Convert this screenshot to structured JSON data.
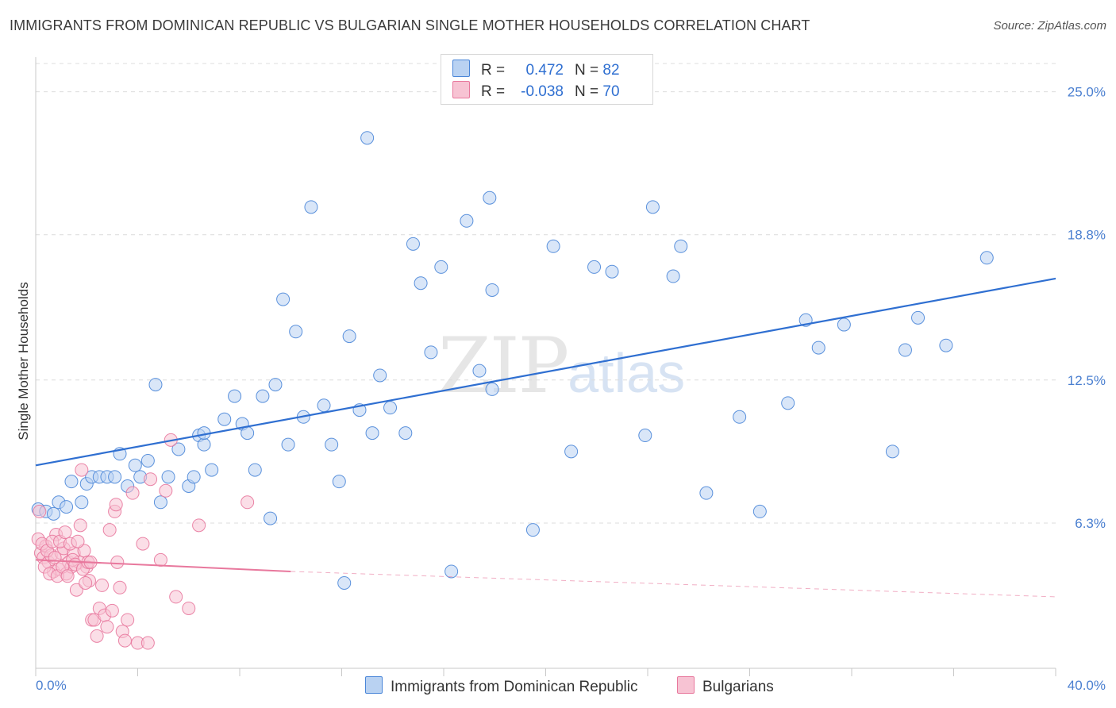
{
  "header": {
    "title": "IMMIGRANTS FROM DOMINICAN REPUBLIC VS BULGARIAN SINGLE MOTHER HOUSEHOLDS CORRELATION CHART",
    "source": "Source: ZipAtlas.com"
  },
  "watermark": {
    "zip": "ZIP",
    "atlas": "atlas"
  },
  "legend": {
    "rows": [
      {
        "r_label": "R =",
        "r_value": "0.472",
        "n_label": "N =",
        "n_value": "82",
        "color": "#a9c8f0"
      },
      {
        "r_label": "R =",
        "r_value": "-0.038",
        "n_label": "N =",
        "n_value": "70",
        "color": "#f5b8cb"
      }
    ]
  },
  "bottom_legend": {
    "items": [
      {
        "label": "Immigrants from Dominican Republic",
        "color": "#a9c8f0"
      },
      {
        "label": "Bulgarians",
        "color": "#f5b8cb"
      }
    ]
  },
  "chart_data": {
    "type": "scatter",
    "title": "IMMIGRANTS FROM DOMINICAN REPUBLIC VS BULGARIAN SINGLE MOTHER HOUSEHOLDS CORRELATION CHART",
    "ylabel": "Single Mother Households",
    "xlabel": "",
    "xlim": [
      0,
      40
    ],
    "ylim": [
      0,
      26.5
    ],
    "x_tick_labels": [
      "0.0%",
      "40.0%"
    ],
    "y_ticks": [
      6.3,
      12.5,
      18.8,
      25.0
    ],
    "y_tick_labels": [
      "6.3%",
      "12.5%",
      "18.8%",
      "25.0%"
    ],
    "grid": true,
    "colors": {
      "blue": "#4a86d8",
      "blue_fill": "#b9d2f2",
      "pink": "#e8789d",
      "pink_fill": "#f7c3d3",
      "trend_blue": "#2f6fd1",
      "trend_pink": "#e8789d"
    },
    "series": [
      {
        "name": "Immigrants from Dominican Republic",
        "trend": {
          "x": [
            0,
            40
          ],
          "y": [
            8.8,
            16.9
          ]
        },
        "points": [
          [
            0.1,
            6.9
          ],
          [
            0.4,
            6.8
          ],
          [
            0.7,
            6.7
          ],
          [
            0.9,
            7.2
          ],
          [
            1.2,
            7.0
          ],
          [
            1.4,
            8.1
          ],
          [
            1.8,
            7.2
          ],
          [
            2.0,
            8.0
          ],
          [
            2.2,
            8.3
          ],
          [
            2.5,
            8.3
          ],
          [
            2.8,
            8.3
          ],
          [
            3.1,
            8.3
          ],
          [
            3.3,
            9.3
          ],
          [
            3.6,
            7.9
          ],
          [
            3.9,
            8.8
          ],
          [
            4.1,
            8.3
          ],
          [
            4.4,
            9.0
          ],
          [
            4.7,
            12.3
          ],
          [
            4.9,
            7.2
          ],
          [
            5.2,
            8.3
          ],
          [
            5.6,
            9.5
          ],
          [
            6.0,
            7.9
          ],
          [
            6.2,
            8.3
          ],
          [
            6.4,
            10.1
          ],
          [
            6.6,
            9.7
          ],
          [
            6.9,
            8.6
          ],
          [
            7.4,
            10.8
          ],
          [
            7.8,
            11.8
          ],
          [
            8.1,
            10.6
          ],
          [
            8.3,
            10.2
          ],
          [
            8.6,
            8.6
          ],
          [
            8.9,
            11.8
          ],
          [
            9.2,
            6.5
          ],
          [
            9.4,
            12.3
          ],
          [
            9.7,
            16.0
          ],
          [
            9.9,
            9.7
          ],
          [
            10.2,
            14.6
          ],
          [
            10.5,
            10.9
          ],
          [
            10.8,
            20.0
          ],
          [
            11.3,
            11.4
          ],
          [
            11.6,
            9.7
          ],
          [
            11.9,
            8.1
          ],
          [
            12.1,
            3.7
          ],
          [
            12.3,
            14.4
          ],
          [
            12.7,
            11.2
          ],
          [
            13.0,
            23.0
          ],
          [
            13.2,
            10.2
          ],
          [
            13.5,
            12.7
          ],
          [
            13.9,
            11.3
          ],
          [
            14.5,
            10.2
          ],
          [
            14.8,
            18.4
          ],
          [
            15.1,
            16.7
          ],
          [
            15.5,
            13.7
          ],
          [
            15.9,
            17.4
          ],
          [
            16.3,
            4.2
          ],
          [
            16.9,
            19.4
          ],
          [
            17.4,
            12.9
          ],
          [
            17.9,
            12.1
          ],
          [
            17.8,
            20.4
          ],
          [
            17.9,
            16.4
          ],
          [
            19.5,
            6.0
          ],
          [
            20.3,
            18.3
          ],
          [
            21.0,
            9.4
          ],
          [
            21.9,
            17.4
          ],
          [
            22.6,
            17.2
          ],
          [
            23.9,
            10.1
          ],
          [
            24.2,
            20.0
          ],
          [
            25.0,
            17.0
          ],
          [
            25.3,
            18.3
          ],
          [
            26.3,
            7.6
          ],
          [
            27.6,
            10.9
          ],
          [
            28.4,
            6.8
          ],
          [
            29.5,
            11.5
          ],
          [
            30.2,
            15.1
          ],
          [
            30.7,
            13.9
          ],
          [
            31.7,
            14.9
          ],
          [
            33.6,
            9.4
          ],
          [
            34.1,
            13.8
          ],
          [
            34.6,
            15.2
          ],
          [
            35.7,
            14.0
          ],
          [
            37.3,
            17.8
          ],
          [
            6.6,
            10.2
          ]
        ]
      },
      {
        "name": "Bulgarians",
        "trend": {
          "x": [
            0,
            10
          ],
          "y": [
            4.7,
            4.2
          ]
        },
        "trend_dashed": {
          "x": [
            10,
            40
          ],
          "y": [
            4.2,
            3.1
          ]
        },
        "points": [
          [
            0.1,
            5.6
          ],
          [
            0.2,
            5.0
          ],
          [
            0.3,
            4.8
          ],
          [
            0.4,
            5.3
          ],
          [
            0.5,
            4.6
          ],
          [
            0.6,
            4.9
          ],
          [
            0.7,
            4.2
          ],
          [
            0.8,
            5.8
          ],
          [
            0.9,
            4.3
          ],
          [
            1.0,
            5.0
          ],
          [
            1.1,
            5.2
          ],
          [
            1.2,
            4.1
          ],
          [
            1.3,
            4.6
          ],
          [
            1.4,
            4.4
          ],
          [
            1.5,
            5.0
          ],
          [
            1.6,
            3.4
          ],
          [
            1.7,
            4.6
          ],
          [
            1.8,
            8.6
          ],
          [
            1.9,
            5.1
          ],
          [
            2.0,
            4.4
          ],
          [
            2.1,
            3.8
          ],
          [
            2.2,
            2.1
          ],
          [
            2.3,
            2.1
          ],
          [
            2.4,
            1.4
          ],
          [
            2.5,
            2.6
          ],
          [
            2.6,
            3.6
          ],
          [
            2.7,
            2.3
          ],
          [
            2.8,
            1.8
          ],
          [
            2.9,
            6.0
          ],
          [
            3.0,
            2.5
          ],
          [
            3.1,
            6.8
          ],
          [
            3.2,
            4.6
          ],
          [
            3.3,
            3.5
          ],
          [
            3.4,
            1.6
          ],
          [
            3.5,
            1.2
          ],
          [
            3.6,
            2.1
          ],
          [
            3.8,
            7.6
          ],
          [
            4.0,
            1.1
          ],
          [
            4.2,
            5.4
          ],
          [
            4.4,
            1.1
          ],
          [
            4.5,
            8.2
          ],
          [
            4.9,
            4.7
          ],
          [
            5.1,
            7.7
          ],
          [
            5.3,
            9.9
          ],
          [
            5.5,
            3.1
          ],
          [
            6.0,
            2.6
          ],
          [
            6.4,
            6.2
          ],
          [
            0.15,
            6.8
          ],
          [
            0.25,
            5.4
          ],
          [
            0.35,
            4.4
          ],
          [
            0.45,
            5.1
          ],
          [
            0.55,
            4.1
          ],
          [
            0.65,
            5.5
          ],
          [
            0.75,
            4.8
          ],
          [
            0.85,
            4.0
          ],
          [
            0.95,
            5.5
          ],
          [
            1.05,
            4.4
          ],
          [
            1.15,
            5.9
          ],
          [
            1.25,
            4.0
          ],
          [
            1.35,
            5.4
          ],
          [
            1.45,
            4.7
          ],
          [
            1.55,
            4.5
          ],
          [
            1.65,
            5.5
          ],
          [
            1.75,
            6.2
          ],
          [
            1.85,
            4.3
          ],
          [
            1.95,
            3.7
          ],
          [
            2.05,
            4.6
          ],
          [
            2.15,
            4.6
          ],
          [
            3.15,
            7.1
          ],
          [
            8.3,
            7.2
          ]
        ]
      }
    ]
  }
}
